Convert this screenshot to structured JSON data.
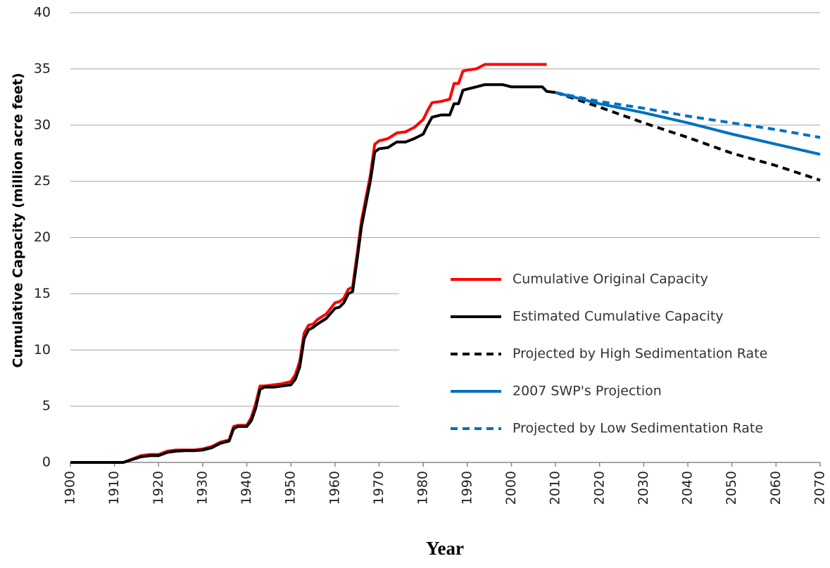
{
  "chart_data": {
    "type": "line",
    "xlabel": "Year",
    "ylabel": "Cumulative Capacity (million acre feet)",
    "xlim": [
      1900,
      2070
    ],
    "xticks": [
      1900,
      1910,
      1920,
      1930,
      1940,
      1950,
      1960,
      1970,
      1980,
      1990,
      2000,
      2010,
      2020,
      2030,
      2040,
      2050,
      2060,
      2070
    ],
    "ylim": [
      0,
      40
    ],
    "yticks": [
      0,
      5,
      10,
      15,
      20,
      25,
      30,
      35,
      40
    ],
    "grid": true,
    "legend": "lower right",
    "x": [
      1900,
      1905,
      1910,
      1912,
      1914,
      1916,
      1918,
      1920,
      1922,
      1924,
      1926,
      1928,
      1930,
      1932,
      1934,
      1936,
      1937,
      1938,
      1940,
      1941,
      1942,
      1943,
      1944,
      1946,
      1948,
      1950,
      1951,
      1952,
      1953,
      1954,
      1955,
      1956,
      1958,
      1960,
      1961,
      1962,
      1963,
      1964,
      1965,
      1966,
      1967,
      1968,
      1969,
      1970,
      1972,
      1974,
      1976,
      1978,
      1980,
      1981,
      1982,
      1984,
      1986,
      1987,
      1988,
      1989,
      1990,
      1992,
      1994,
      1996,
      1998,
      2000,
      2004,
      2007,
      2008,
      2010,
      2020,
      2030,
      2040,
      2050,
      2060,
      2070
    ],
    "series": [
      {
        "name": "Cumulative Original Capacity",
        "color": "#ff0000",
        "dashed": false,
        "values": [
          0,
          0,
          0,
          0,
          0.3,
          0.6,
          0.7,
          0.7,
          1.0,
          1.1,
          1.1,
          1.1,
          1.2,
          1.4,
          1.8,
          2.0,
          3.2,
          3.3,
          3.3,
          4.0,
          5.2,
          6.8,
          6.8,
          6.9,
          7.0,
          7.2,
          7.8,
          9.0,
          11.5,
          12.2,
          12.3,
          12.7,
          13.2,
          14.2,
          14.3,
          14.6,
          15.4,
          15.6,
          18.5,
          21.5,
          23.5,
          25.5,
          28.3,
          28.6,
          28.8,
          29.3,
          29.4,
          29.8,
          30.5,
          31.3,
          32.0,
          32.1,
          32.3,
          33.7,
          33.7,
          34.8,
          34.9,
          35.0,
          35.4,
          35.4,
          35.4,
          35.4,
          35.4,
          35.4,
          35.4,
          null,
          null,
          null,
          null,
          null,
          null,
          null
        ]
      },
      {
        "name": "Estimated Cumulative Capacity",
        "color": "#000000",
        "dashed": false,
        "values": [
          0,
          0,
          0,
          0,
          0.25,
          0.5,
          0.6,
          0.6,
          0.9,
          1.0,
          1.05,
          1.05,
          1.1,
          1.3,
          1.7,
          1.9,
          3.0,
          3.2,
          3.2,
          3.7,
          4.8,
          6.5,
          6.7,
          6.7,
          6.8,
          6.9,
          7.4,
          8.5,
          11.0,
          11.8,
          12.0,
          12.3,
          12.8,
          13.7,
          13.8,
          14.2,
          15.0,
          15.2,
          18.0,
          21.0,
          23.0,
          25.0,
          27.6,
          27.9,
          28.0,
          28.5,
          28.5,
          28.8,
          29.2,
          30.0,
          30.7,
          30.9,
          30.9,
          31.9,
          31.9,
          33.1,
          33.2,
          33.4,
          33.6,
          33.6,
          33.6,
          33.4,
          33.4,
          33.4,
          33.0,
          32.9,
          null,
          null,
          null,
          null,
          null,
          null
        ]
      },
      {
        "name": "Projected by High Sedimentation Rate",
        "color": "#000000",
        "dashed": true,
        "values": [
          null,
          null,
          null,
          null,
          null,
          null,
          null,
          null,
          null,
          null,
          null,
          null,
          null,
          null,
          null,
          null,
          null,
          null,
          null,
          null,
          null,
          null,
          null,
          null,
          null,
          null,
          null,
          null,
          null,
          null,
          null,
          null,
          null,
          null,
          null,
          null,
          null,
          null,
          null,
          null,
          null,
          null,
          null,
          null,
          null,
          null,
          null,
          null,
          null,
          null,
          null,
          null,
          null,
          null,
          null,
          null,
          null,
          null,
          null,
          null,
          null,
          null,
          null,
          null,
          null,
          32.9,
          31.6,
          30.2,
          28.9,
          27.5,
          26.4,
          25.1
        ]
      },
      {
        "name": "2007 SWP's Projection",
        "color": "#0070c0",
        "dashed": false,
        "values": [
          null,
          null,
          null,
          null,
          null,
          null,
          null,
          null,
          null,
          null,
          null,
          null,
          null,
          null,
          null,
          null,
          null,
          null,
          null,
          null,
          null,
          null,
          null,
          null,
          null,
          null,
          null,
          null,
          null,
          null,
          null,
          null,
          null,
          null,
          null,
          null,
          null,
          null,
          null,
          null,
          null,
          null,
          null,
          null,
          null,
          null,
          null,
          null,
          null,
          null,
          null,
          null,
          null,
          null,
          null,
          null,
          null,
          null,
          null,
          null,
          null,
          null,
          null,
          null,
          null,
          32.9,
          31.9,
          31.1,
          30.2,
          29.2,
          28.3,
          27.4
        ]
      },
      {
        "name": "Projected by Low Sedimentation Rate",
        "color": "#0070c0",
        "dashed": true,
        "values": [
          null,
          null,
          null,
          null,
          null,
          null,
          null,
          null,
          null,
          null,
          null,
          null,
          null,
          null,
          null,
          null,
          null,
          null,
          null,
          null,
          null,
          null,
          null,
          null,
          null,
          null,
          null,
          null,
          null,
          null,
          null,
          null,
          null,
          null,
          null,
          null,
          null,
          null,
          null,
          null,
          null,
          null,
          null,
          null,
          null,
          null,
          null,
          null,
          null,
          null,
          null,
          null,
          null,
          null,
          null,
          null,
          null,
          null,
          null,
          null,
          null,
          null,
          null,
          null,
          null,
          32.9,
          32.1,
          31.5,
          30.8,
          30.2,
          29.6,
          28.9
        ]
      }
    ]
  }
}
